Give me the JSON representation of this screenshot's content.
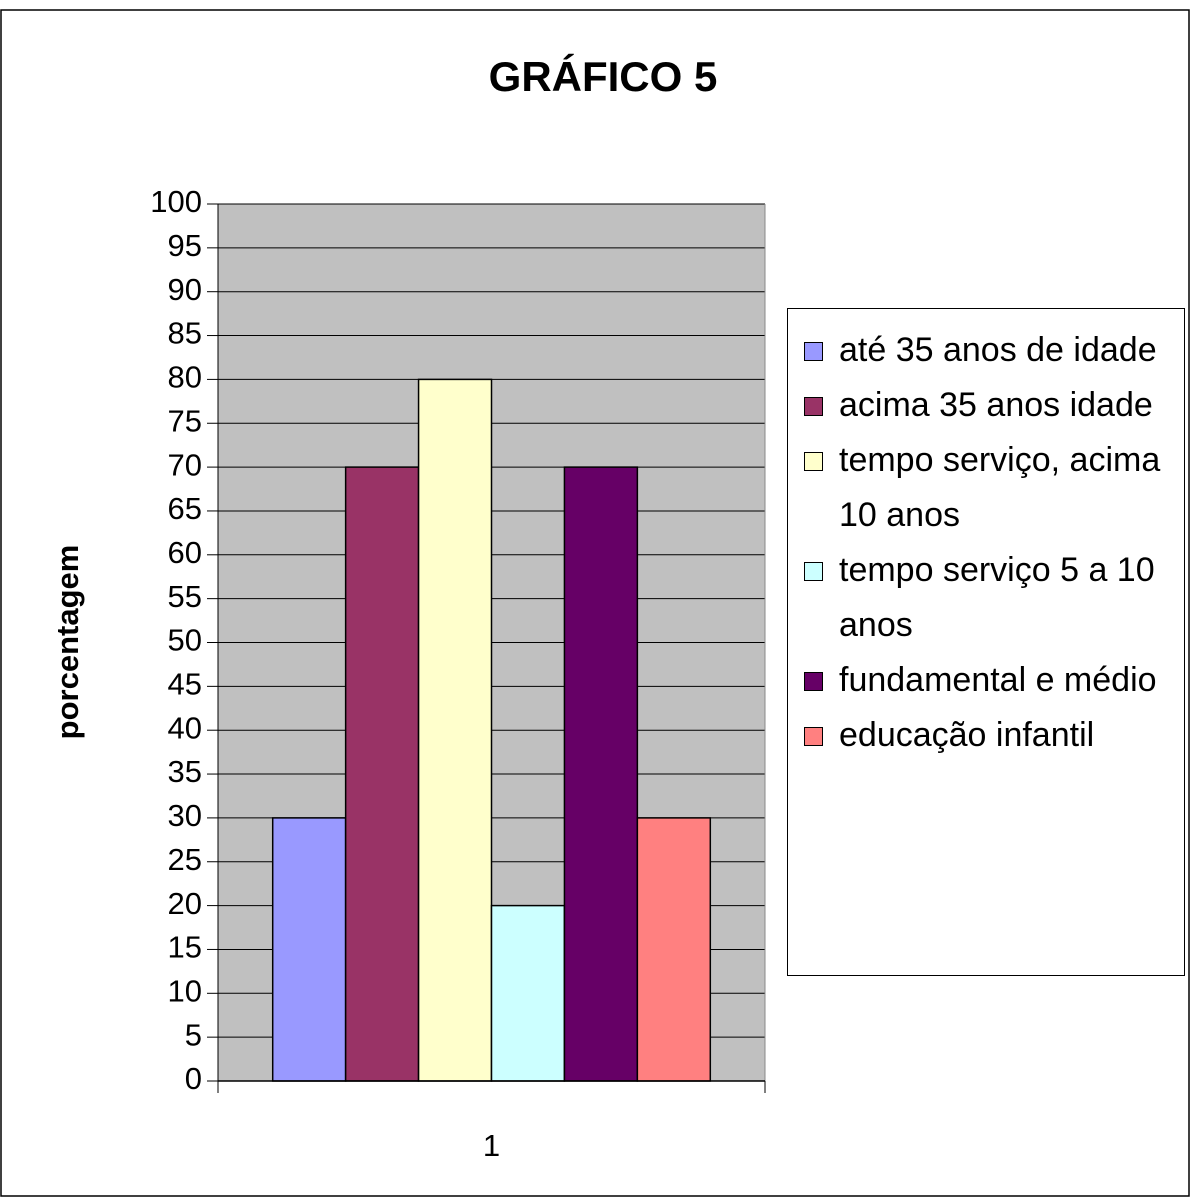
{
  "chart_data": {
    "type": "bar",
    "title": "GRÁFICO 5",
    "y_label": "porcentagem",
    "categories": [
      "1"
    ],
    "series": [
      {
        "name": "até 35 anos de idade",
        "color": "#9999ff",
        "values": [
          30
        ]
      },
      {
        "name": "acima 35 anos idade",
        "color": "#993366",
        "values": [
          70
        ]
      },
      {
        "name": "tempo serviço, acima 10 anos",
        "color": "#ffffcc",
        "values": [
          80
        ]
      },
      {
        "name": "tempo serviço 5 a 10 anos",
        "color": "#ccffff",
        "values": [
          20
        ]
      },
      {
        "name": "fundamental e médio",
        "color": "#660066",
        "values": [
          70
        ]
      },
      {
        "name": "educação infantil",
        "color": "#ff8080",
        "values": [
          30
        ]
      }
    ],
    "ylim": [
      0,
      100
    ],
    "yticks": [
      0,
      5,
      10,
      15,
      20,
      25,
      30,
      35,
      40,
      45,
      50,
      55,
      60,
      65,
      70,
      75,
      80,
      85,
      90,
      95,
      100
    ],
    "grid": true,
    "legend": "right"
  }
}
